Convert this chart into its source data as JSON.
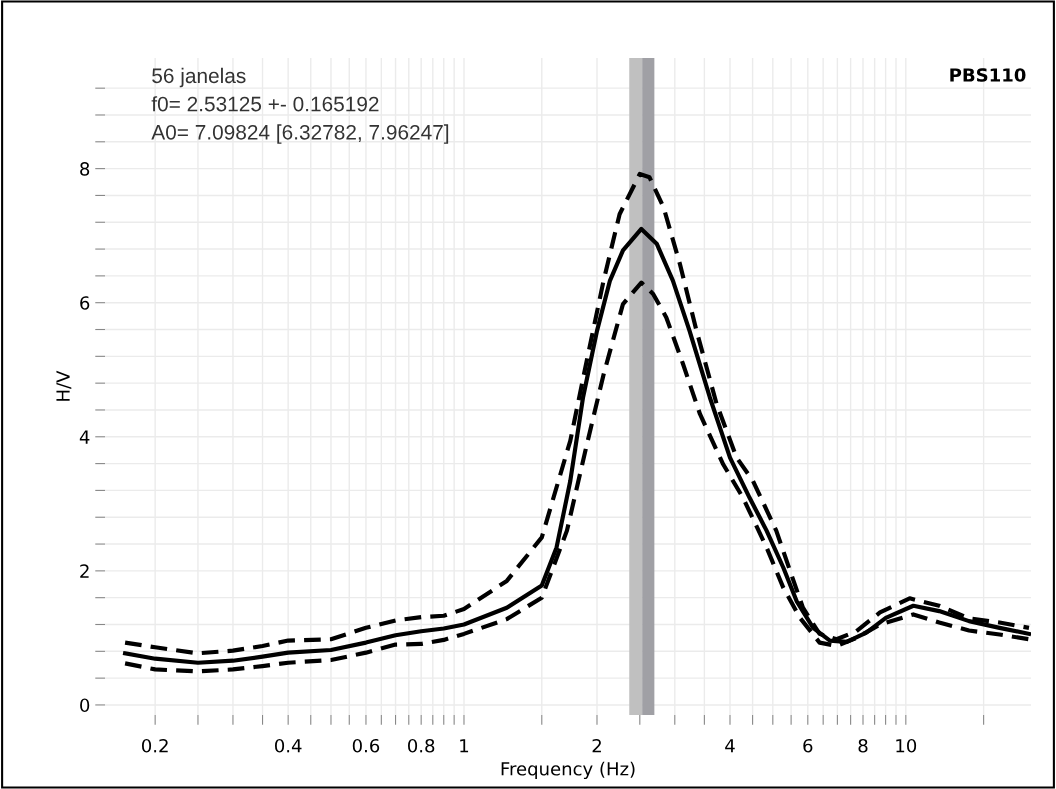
{
  "chart_data": {
    "type": "line",
    "title": "PBS110",
    "xlabel": "Frequency (Hz)",
    "ylabel": "H/V",
    "annotations": [
      "56 janelas",
      "f0= 2.53125 +- 0.165192",
      "A0= 7.09824 [6.32782, 7.96247]"
    ],
    "log": "x",
    "grid": true,
    "xlim": [
      0.154,
      19.2
    ],
    "ylim": [
      -0.15,
      9.65
    ],
    "xticks": [
      {
        "value": 0.2,
        "label": "0.2"
      },
      {
        "value": 0.25,
        "label": null
      },
      {
        "value": 0.3,
        "label": null
      },
      {
        "value": 0.35,
        "label": null
      },
      {
        "value": 0.4,
        "label": "0.4"
      },
      {
        "value": 0.45,
        "label": null
      },
      {
        "value": 0.5,
        "label": null
      },
      {
        "value": 0.55,
        "label": null
      },
      {
        "value": 0.6,
        "label": "0.6"
      },
      {
        "value": 0.65,
        "label": null
      },
      {
        "value": 0.7,
        "label": null
      },
      {
        "value": 0.75,
        "label": null
      },
      {
        "value": 0.8,
        "label": "0.8"
      },
      {
        "value": 0.85,
        "label": null
      },
      {
        "value": 0.9,
        "label": null
      },
      {
        "value": 0.95,
        "label": null
      },
      1,
      {
        "value": 1.5,
        "label": null
      },
      2,
      {
        "value": 2.5,
        "label": null
      },
      {
        "value": 3,
        "label": null
      },
      {
        "value": 3.5,
        "label": null
      },
      4,
      {
        "value": 4.5,
        "label": null
      },
      {
        "value": 5,
        "label": null
      },
      {
        "value": 5.5,
        "label": null
      },
      6,
      {
        "value": 6.5,
        "label": null
      },
      {
        "value": 7,
        "label": null
      },
      {
        "value": 7.5,
        "label": null
      },
      8,
      {
        "value": 8.5,
        "label": null
      },
      {
        "value": 9,
        "label": null
      },
      {
        "value": 9.5,
        "label": null
      },
      10,
      {
        "value": 15,
        "label": null
      }
    ],
    "yticks": [
      0,
      {
        "value": 0.4,
        "label": null
      },
      {
        "value": 0.8,
        "label": null
      },
      {
        "value": 1.2,
        "label": null
      },
      {
        "value": 1.6,
        "label": null
      },
      2,
      {
        "value": 2.4,
        "label": null
      },
      {
        "value": 2.8,
        "label": null
      },
      {
        "value": 3.2,
        "label": null
      },
      {
        "value": 3.6,
        "label": null
      },
      4,
      {
        "value": 4.4,
        "label": null
      },
      {
        "value": 4.8,
        "label": null
      },
      {
        "value": 5.2,
        "label": null
      },
      {
        "value": 5.6,
        "label": null
      },
      6,
      {
        "value": 6.4,
        "label": null
      },
      {
        "value": 6.8,
        "label": null
      },
      {
        "value": 7.2,
        "label": null
      },
      {
        "value": 7.6,
        "label": null
      },
      8,
      {
        "value": 8.4,
        "label": null
      },
      {
        "value": 8.8,
        "label": null
      },
      {
        "value": 9.2,
        "label": null
      }
    ],
    "bands": [
      {
        "axis": "x",
        "from": 2.366,
        "to": 2.531,
        "color": "#c0c0c0"
      },
      {
        "axis": "x",
        "from": 2.531,
        "to": 2.697,
        "color": "#a0a0a5"
      }
    ],
    "series": [
      {
        "color": "#000000",
        "line_style": "solid",
        "x": [
          0.171,
          0.2,
          0.25,
          0.3,
          0.35,
          0.4,
          0.5,
          0.6,
          0.7,
          0.8,
          0.9,
          1.0,
          1.25,
          1.5,
          1.62,
          1.74,
          1.86,
          2.0,
          2.14,
          2.29,
          2.52,
          2.73,
          2.97,
          3.24,
          3.6,
          4.0,
          4.43,
          4.84,
          5.28,
          5.66,
          6.17,
          6.73,
          7.35,
          8.14,
          9.01,
          10.4,
          11.9,
          13.9,
          16.3,
          19.0
        ],
        "values": [
          0.77,
          0.69,
          0.63,
          0.66,
          0.72,
          0.78,
          0.82,
          0.93,
          1.04,
          1.1,
          1.14,
          1.2,
          1.45,
          1.78,
          2.35,
          3.34,
          4.59,
          5.58,
          6.33,
          6.78,
          7.1,
          6.88,
          6.33,
          5.58,
          4.59,
          3.69,
          3.09,
          2.6,
          2.05,
          1.55,
          1.15,
          0.96,
          0.94,
          1.08,
          1.3,
          1.48,
          1.4,
          1.25,
          1.15,
          1.06
        ]
      },
      {
        "color": "#000000",
        "line_style": "dashed",
        "x": [
          0.171,
          0.2,
          0.25,
          0.3,
          0.35,
          0.4,
          0.5,
          0.6,
          0.7,
          0.8,
          0.9,
          1.0,
          1.25,
          1.5,
          1.74,
          1.89,
          2.07,
          2.25,
          2.5,
          2.63,
          2.83,
          3.08,
          3.36,
          3.73,
          4.14,
          4.51,
          5.09,
          5.47,
          5.85,
          6.38,
          6.97,
          7.73,
          8.74,
          10.2,
          11.9,
          13.9,
          16.3,
          19.0
        ],
        "values": [
          0.93,
          0.86,
          0.77,
          0.81,
          0.88,
          0.96,
          0.98,
          1.15,
          1.26,
          1.31,
          1.33,
          1.43,
          1.85,
          2.5,
          3.94,
          5.09,
          6.33,
          7.32,
          7.92,
          7.87,
          7.42,
          6.58,
          5.58,
          4.49,
          3.69,
          3.34,
          2.6,
          2.0,
          1.45,
          1.06,
          0.98,
          1.1,
          1.38,
          1.59,
          1.48,
          1.29,
          1.23,
          1.15
        ]
      },
      {
        "color": "#000000",
        "line_style": "dashed",
        "x": [
          0.171,
          0.2,
          0.25,
          0.3,
          0.35,
          0.4,
          0.5,
          0.6,
          0.7,
          0.8,
          0.9,
          1.0,
          1.25,
          1.5,
          1.71,
          1.89,
          2.07,
          2.29,
          2.52,
          2.68,
          2.87,
          3.13,
          3.42,
          3.86,
          4.28,
          4.84,
          5.28,
          5.76,
          6.38,
          6.97,
          7.73,
          8.74,
          10.4,
          11.9,
          13.9,
          16.3,
          19.0
        ],
        "values": [
          0.62,
          0.53,
          0.5,
          0.53,
          0.58,
          0.63,
          0.67,
          0.78,
          0.9,
          0.91,
          0.97,
          1.06,
          1.28,
          1.6,
          2.6,
          3.84,
          4.93,
          5.98,
          6.3,
          6.13,
          5.78,
          5.09,
          4.34,
          3.59,
          3.09,
          2.35,
          1.75,
          1.3,
          0.93,
          0.88,
          1.0,
          1.2,
          1.35,
          1.23,
          1.11,
          1.05,
          0.98
        ]
      }
    ]
  }
}
